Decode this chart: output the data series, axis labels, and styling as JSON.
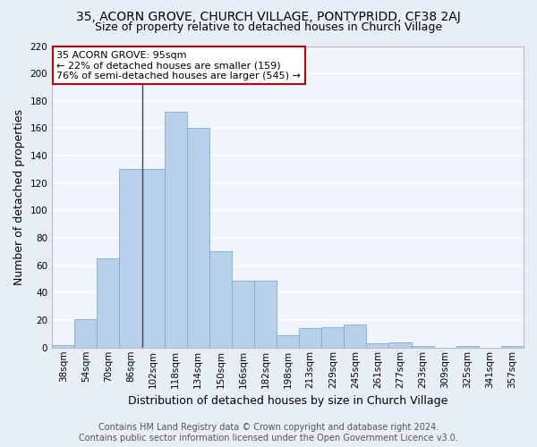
{
  "title": "35, ACORN GROVE, CHURCH VILLAGE, PONTYPRIDD, CF38 2AJ",
  "subtitle": "Size of property relative to detached houses in Church Village",
  "xlabel": "Distribution of detached houses by size in Church Village",
  "ylabel": "Number of detached properties",
  "categories": [
    "38sqm",
    "54sqm",
    "70sqm",
    "86sqm",
    "102sqm",
    "118sqm",
    "134sqm",
    "150sqm",
    "166sqm",
    "182sqm",
    "198sqm",
    "213sqm",
    "229sqm",
    "245sqm",
    "261sqm",
    "277sqm",
    "293sqm",
    "309sqm",
    "325sqm",
    "341sqm",
    "357sqm"
  ],
  "values": [
    2,
    21,
    65,
    130,
    130,
    172,
    160,
    70,
    49,
    49,
    9,
    14,
    15,
    17,
    3,
    4,
    1,
    0,
    1,
    0,
    1
  ],
  "bar_color": "#b8d0ea",
  "bar_edge_color": "#7aadd4",
  "highlight_line_color": "#444444",
  "annotation_box_color": "#ffffff",
  "annotation_border_color": "#cc0000",
  "annotation_text_line1": "35 ACORN GROVE: 95sqm",
  "annotation_text_line2": "← 22% of detached houses are smaller (159)",
  "annotation_text_line3": "76% of semi-detached houses are larger (545) →",
  "footer_line1": "Contains HM Land Registry data © Crown copyright and database right 2024.",
  "footer_line2": "Contains public sector information licensed under the Open Government Licence v3.0.",
  "ylim": [
    0,
    220
  ],
  "yticks": [
    0,
    20,
    40,
    60,
    80,
    100,
    120,
    140,
    160,
    180,
    200,
    220
  ],
  "bg_color": "#e8eef8",
  "plot_bg_color": "#f0f4fc",
  "grid_color": "#ffffff",
  "title_fontsize": 10,
  "subtitle_fontsize": 9,
  "axis_label_fontsize": 9,
  "tick_fontsize": 7.5,
  "annotation_fontsize": 8,
  "footer_fontsize": 7
}
